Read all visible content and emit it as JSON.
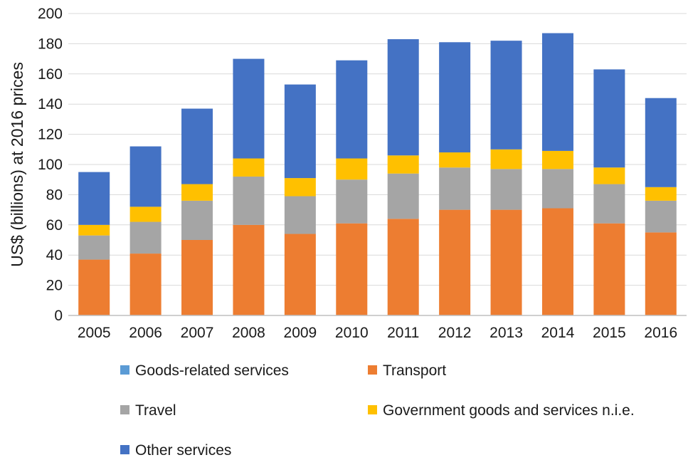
{
  "chart_data": {
    "type": "bar",
    "stacked": true,
    "title": "",
    "xlabel": "",
    "ylabel": "US$ (billions) at 2016 prices",
    "ylim": [
      0,
      200
    ],
    "yticks": [
      0,
      20,
      40,
      60,
      80,
      100,
      120,
      140,
      160,
      180,
      200
    ],
    "grid": true,
    "legend_position": "bottom",
    "categories": [
      "2005",
      "2006",
      "2007",
      "2008",
      "2009",
      "2010",
      "2011",
      "2012",
      "2013",
      "2014",
      "2015",
      "2016"
    ],
    "series": [
      {
        "name": "Goods-related services",
        "color": "#5b9bd5",
        "values": [
          0,
          0,
          0,
          0,
          0,
          0,
          0,
          0,
          0,
          0,
          0,
          0
        ]
      },
      {
        "name": "Transport",
        "color": "#ed7d31",
        "values": [
          37,
          41,
          50,
          60,
          54,
          61,
          64,
          70,
          70,
          71,
          61,
          55
        ]
      },
      {
        "name": "Travel",
        "color": "#a5a5a5",
        "values": [
          16,
          21,
          26,
          32,
          25,
          29,
          30,
          28,
          27,
          26,
          26,
          21
        ]
      },
      {
        "name": "Government goods and services n.i.e.",
        "color": "#ffc000",
        "values": [
          7,
          10,
          11,
          12,
          12,
          14,
          12,
          10,
          13,
          12,
          11,
          9
        ]
      },
      {
        "name": "Other services",
        "color": "#4472c4",
        "values": [
          35,
          40,
          50,
          66,
          62,
          65,
          77,
          73,
          72,
          78,
          65,
          59
        ]
      }
    ]
  }
}
